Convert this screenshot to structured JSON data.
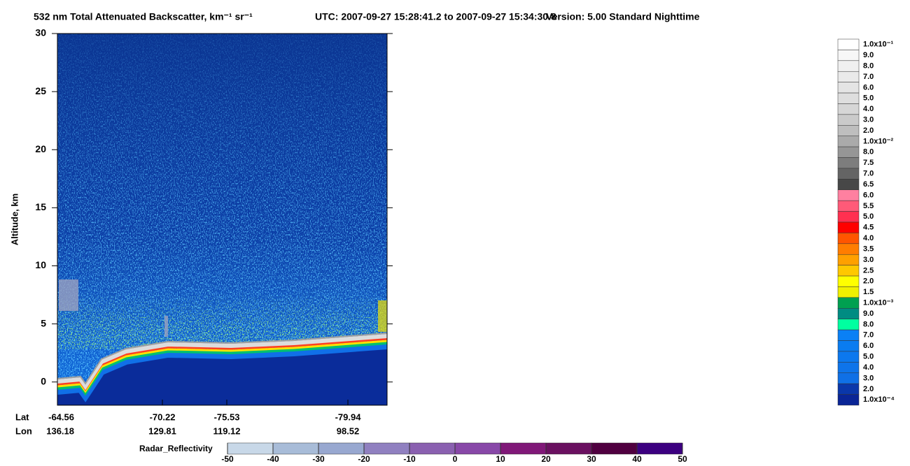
{
  "chart_data": {
    "type": "curtain",
    "title": "532 nm Total Attenuated Backscatter, km⁻¹ sr⁻¹",
    "subtitle": "UTC:  2007-09-27 15:28:41.2  to  2007-09-27 15:34:30.8",
    "version": "Version: 5.00  Standard  Nighttime",
    "ylabel": "Altitude, km",
    "ylim": [
      -2,
      30
    ],
    "yticks": [
      0,
      5,
      10,
      15,
      20,
      25,
      30
    ],
    "x_rows": [
      {
        "name": "Lat",
        "values": [
          -64.56,
          -70.22,
          -75.53,
          -79.94
        ]
      },
      {
        "name": "Lon",
        "values": [
          136.18,
          129.81,
          119.12,
          98.52
        ]
      }
    ],
    "colorbar": {
      "labels": [
        "1.0x10⁻¹",
        "9.0",
        "8.0",
        "7.0",
        "6.0",
        "5.0",
        "4.0",
        "3.0",
        "2.0",
        "1.0x10⁻²",
        "8.0",
        "7.5",
        "7.0",
        "6.5",
        "6.0",
        "5.5",
        "5.0",
        "4.5",
        "4.0",
        "3.5",
        "3.0",
        "2.5",
        "2.0",
        "1.5",
        "1.0x10⁻³",
        "9.0",
        "8.0",
        "7.0",
        "6.0",
        "5.0",
        "4.0",
        "3.0",
        "2.0",
        "1.0x10⁻⁴"
      ],
      "colors": [
        "#ffffff",
        "#f7f7f7",
        "#f0f0f0",
        "#eaeaea",
        "#e4e4e4",
        "#dedede",
        "#d6d6d6",
        "#cacaca",
        "#bebebe",
        "#aaaaaa",
        "#969696",
        "#7d7d7d",
        "#646464",
        "#474747",
        "#ff80a0",
        "#ff5a78",
        "#ff3050",
        "#ff0000",
        "#ff5500",
        "#ff7d00",
        "#ffa000",
        "#ffc800",
        "#ffff00",
        "#f0f000",
        "#00a050",
        "#008c82",
        "#00ffa0",
        "#0a80f5",
        "#0a7cf0",
        "#0c78ee",
        "#0e74ea",
        "#0f70e6",
        "#0a37aa",
        "#0a2596"
      ]
    },
    "radar_colorbar": {
      "label": "Radar_Reflectivity",
      "lim": [
        -50,
        50
      ],
      "ticks": [
        -50,
        -40,
        -30,
        -20,
        -10,
        0,
        10,
        20,
        30,
        40,
        50
      ],
      "colors": [
        "#c8d8e8",
        "#a8bcd8",
        "#98a8d0",
        "#9080c0",
        "#8a60b0",
        "#8848a8",
        "#801878",
        "#6a1060",
        "#500040",
        "#3c0080"
      ]
    }
  }
}
